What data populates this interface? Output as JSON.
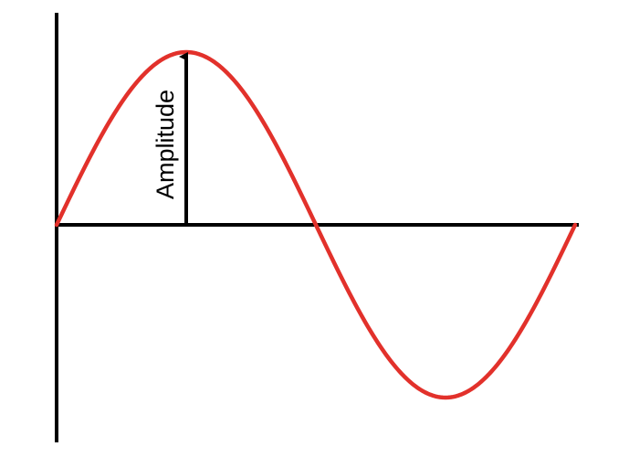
{
  "diagram": {
    "amplitude_label": "Amplitude",
    "wave_color": "#e2312b",
    "axis_color": "#000000",
    "wave_cycles": 1
  }
}
